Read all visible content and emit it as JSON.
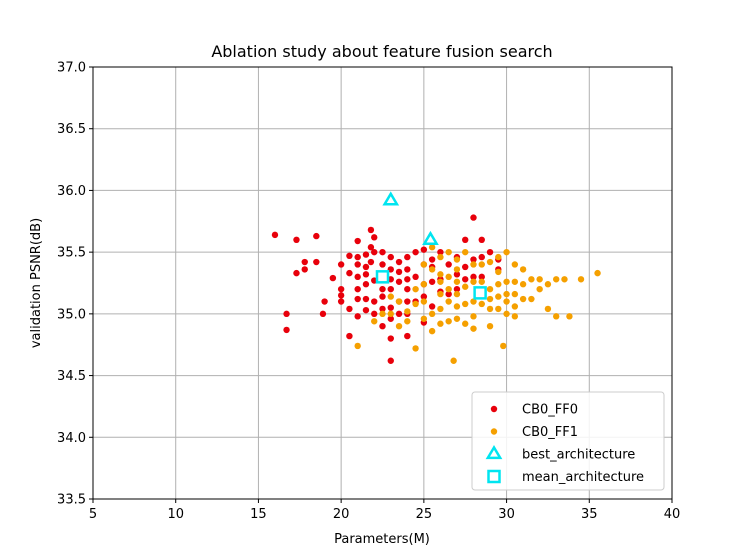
{
  "chart_data": {
    "type": "scatter",
    "title": "Ablation study about feature fusion search",
    "xlabel": "Parameters(M)",
    "ylabel": "validation PSNR(dB)",
    "xlim": [
      5,
      40
    ],
    "ylim": [
      33.5,
      37.0
    ],
    "xticks": [
      "5",
      "10",
      "15",
      "20",
      "25",
      "30",
      "35",
      "40"
    ],
    "yticks": [
      "33.5",
      "34.0",
      "34.5",
      "35.0",
      "35.5",
      "36.0",
      "36.5",
      "37.0"
    ],
    "grid": true,
    "legend_position": "lower-right",
    "series": [
      {
        "name": "CB0_FF0",
        "marker": "circle",
        "color": "#e8000b",
        "points": [
          [
            16.0,
            35.64
          ],
          [
            16.7,
            35.0
          ],
          [
            16.7,
            34.87
          ],
          [
            17.3,
            35.6
          ],
          [
            17.3,
            35.33
          ],
          [
            17.8,
            35.42
          ],
          [
            17.8,
            35.36
          ],
          [
            18.5,
            35.63
          ],
          [
            18.5,
            35.42
          ],
          [
            18.9,
            35.0
          ],
          [
            19.0,
            35.1
          ],
          [
            19.5,
            35.29
          ],
          [
            20.0,
            35.4
          ],
          [
            20.0,
            35.2
          ],
          [
            20.0,
            35.15
          ],
          [
            20.0,
            35.1
          ],
          [
            20.5,
            35.47
          ],
          [
            20.5,
            35.33
          ],
          [
            20.5,
            35.04
          ],
          [
            20.5,
            34.82
          ],
          [
            21.0,
            35.59
          ],
          [
            21.0,
            35.46
          ],
          [
            21.0,
            35.4
          ],
          [
            21.0,
            35.3
          ],
          [
            21.0,
            35.2
          ],
          [
            21.0,
            35.12
          ],
          [
            21.0,
            34.98
          ],
          [
            21.5,
            35.48
          ],
          [
            21.5,
            35.38
          ],
          [
            21.5,
            35.32
          ],
          [
            21.5,
            35.24
          ],
          [
            21.5,
            35.12
          ],
          [
            21.5,
            35.03
          ],
          [
            21.8,
            35.68
          ],
          [
            21.8,
            35.54
          ],
          [
            21.8,
            35.42
          ],
          [
            22.0,
            35.62
          ],
          [
            22.0,
            35.5
          ],
          [
            22.0,
            35.27
          ],
          [
            22.0,
            35.1
          ],
          [
            22.0,
            35.0
          ],
          [
            22.5,
            35.5
          ],
          [
            22.5,
            35.4
          ],
          [
            22.5,
            35.2
          ],
          [
            22.5,
            35.14
          ],
          [
            22.5,
            35.04
          ],
          [
            22.5,
            34.9
          ],
          [
            23.0,
            35.46
          ],
          [
            23.0,
            35.36
          ],
          [
            23.0,
            35.28
          ],
          [
            23.0,
            35.2
          ],
          [
            23.0,
            35.05
          ],
          [
            23.0,
            34.96
          ],
          [
            23.0,
            34.8
          ],
          [
            23.0,
            34.62
          ],
          [
            23.5,
            35.42
          ],
          [
            23.5,
            35.34
          ],
          [
            23.5,
            35.26
          ],
          [
            23.5,
            35.1
          ],
          [
            23.5,
            35.0
          ],
          [
            24.0,
            35.46
          ],
          [
            24.0,
            35.36
          ],
          [
            24.0,
            35.28
          ],
          [
            24.0,
            35.2
          ],
          [
            24.0,
            35.1
          ],
          [
            24.0,
            35.0
          ],
          [
            24.0,
            34.82
          ],
          [
            24.5,
            35.5
          ],
          [
            24.5,
            35.3
          ],
          [
            24.5,
            35.1
          ],
          [
            25.0,
            35.52
          ],
          [
            25.0,
            35.4
          ],
          [
            25.0,
            35.24
          ],
          [
            25.0,
            35.14
          ],
          [
            25.0,
            34.93
          ],
          [
            25.5,
            35.44
          ],
          [
            25.5,
            35.38
          ],
          [
            25.5,
            35.26
          ],
          [
            25.5,
            35.06
          ],
          [
            26.0,
            35.5
          ],
          [
            26.0,
            35.28
          ],
          [
            26.0,
            35.18
          ],
          [
            26.5,
            35.4
          ],
          [
            26.5,
            35.16
          ],
          [
            27.0,
            35.46
          ],
          [
            27.0,
            35.32
          ],
          [
            27.0,
            35.2
          ],
          [
            27.5,
            35.6
          ],
          [
            27.5,
            35.38
          ],
          [
            27.5,
            35.28
          ],
          [
            28.0,
            35.78
          ],
          [
            28.0,
            35.44
          ],
          [
            28.0,
            35.3
          ],
          [
            28.5,
            35.6
          ],
          [
            28.5,
            35.46
          ],
          [
            28.5,
            35.3
          ],
          [
            29.0,
            35.5
          ],
          [
            29.5,
            35.44
          ],
          [
            29.5,
            35.36
          ]
        ]
      },
      {
        "name": "CB0_FF1",
        "marker": "circle",
        "color": "#f5a000",
        "points": [
          [
            21.0,
            34.74
          ],
          [
            22.0,
            34.94
          ],
          [
            22.5,
            35.0
          ],
          [
            23.0,
            35.14
          ],
          [
            23.0,
            35.0
          ],
          [
            23.5,
            35.1
          ],
          [
            23.5,
            34.9
          ],
          [
            24.0,
            35.02
          ],
          [
            24.0,
            34.94
          ],
          [
            24.5,
            35.2
          ],
          [
            24.5,
            35.08
          ],
          [
            24.5,
            34.72
          ],
          [
            25.0,
            35.4
          ],
          [
            25.0,
            35.24
          ],
          [
            25.0,
            35.1
          ],
          [
            25.0,
            34.96
          ],
          [
            25.5,
            35.54
          ],
          [
            25.5,
            35.36
          ],
          [
            25.5,
            35.0
          ],
          [
            25.5,
            34.86
          ],
          [
            26.0,
            35.46
          ],
          [
            26.0,
            35.32
          ],
          [
            26.0,
            35.26
          ],
          [
            26.0,
            35.16
          ],
          [
            26.0,
            35.04
          ],
          [
            26.0,
            34.92
          ],
          [
            26.5,
            35.5
          ],
          [
            26.5,
            35.3
          ],
          [
            26.5,
            35.2
          ],
          [
            26.5,
            35.1
          ],
          [
            26.5,
            34.94
          ],
          [
            26.8,
            34.62
          ],
          [
            27.0,
            35.44
          ],
          [
            27.0,
            35.36
          ],
          [
            27.0,
            35.26
          ],
          [
            27.0,
            35.16
          ],
          [
            27.0,
            35.06
          ],
          [
            27.0,
            34.96
          ],
          [
            27.5,
            35.5
          ],
          [
            27.5,
            35.22
          ],
          [
            27.5,
            35.08
          ],
          [
            27.5,
            34.92
          ],
          [
            28.0,
            35.4
          ],
          [
            28.0,
            35.26
          ],
          [
            28.0,
            35.1
          ],
          [
            28.0,
            34.98
          ],
          [
            28.0,
            34.88
          ],
          [
            28.5,
            35.4
          ],
          [
            28.5,
            35.26
          ],
          [
            28.5,
            35.08
          ],
          [
            29.0,
            35.42
          ],
          [
            29.0,
            35.2
          ],
          [
            29.0,
            35.12
          ],
          [
            29.0,
            35.04
          ],
          [
            29.0,
            34.9
          ],
          [
            29.5,
            35.46
          ],
          [
            29.5,
            35.34
          ],
          [
            29.5,
            35.24
          ],
          [
            29.5,
            35.14
          ],
          [
            29.5,
            35.04
          ],
          [
            29.8,
            34.74
          ],
          [
            30.0,
            35.5
          ],
          [
            30.0,
            35.26
          ],
          [
            30.0,
            35.16
          ],
          [
            30.0,
            35.1
          ],
          [
            30.0,
            35.0
          ],
          [
            30.5,
            35.4
          ],
          [
            30.5,
            35.26
          ],
          [
            30.5,
            35.16
          ],
          [
            30.5,
            35.06
          ],
          [
            30.5,
            34.98
          ],
          [
            31.0,
            35.36
          ],
          [
            31.0,
            35.24
          ],
          [
            31.0,
            35.12
          ],
          [
            31.5,
            35.28
          ],
          [
            31.5,
            35.12
          ],
          [
            32.0,
            35.28
          ],
          [
            32.0,
            35.2
          ],
          [
            32.5,
            35.24
          ],
          [
            32.5,
            35.04
          ],
          [
            33.0,
            35.28
          ],
          [
            33.0,
            34.98
          ],
          [
            33.5,
            35.28
          ],
          [
            33.8,
            34.98
          ],
          [
            34.5,
            35.28
          ],
          [
            35.5,
            35.33
          ]
        ]
      },
      {
        "name": "best_architecture",
        "marker": "triangle",
        "color": "#00e5f0",
        "points": [
          [
            23.0,
            35.92
          ],
          [
            25.4,
            35.6
          ]
        ]
      },
      {
        "name": "mean_architecture",
        "marker": "square",
        "color": "#00e5f0",
        "points": [
          [
            22.5,
            35.3
          ],
          [
            28.4,
            35.17
          ]
        ]
      }
    ]
  }
}
